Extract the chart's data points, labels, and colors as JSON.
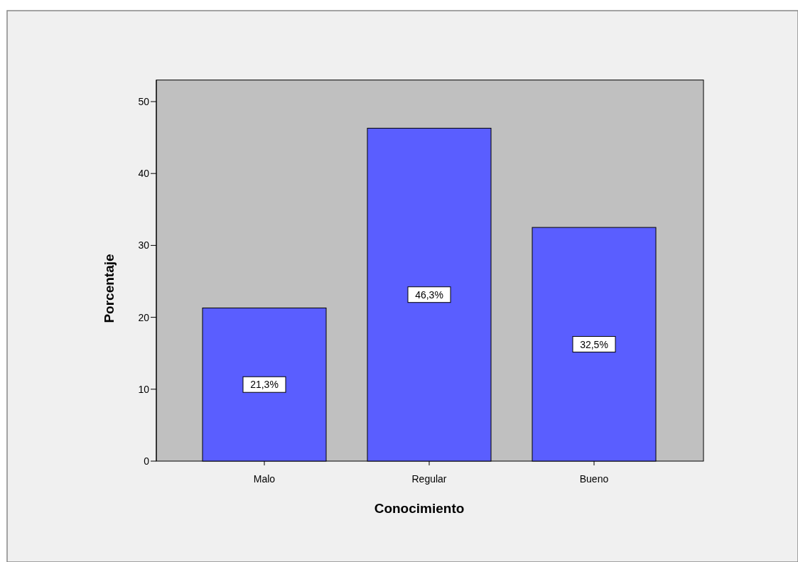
{
  "chart_data": {
    "type": "bar",
    "xlabel": "Conocimiento",
    "ylabel": "Porcentaje",
    "categories": [
      "Malo",
      "Regular",
      "Bueno"
    ],
    "values": [
      21.3,
      46.3,
      32.5
    ],
    "value_labels": [
      "21,3%",
      "46,3%",
      "32,5%"
    ],
    "color": "#5a5eff",
    "ylim": [
      0,
      53
    ],
    "yticks": [
      0,
      10,
      20,
      30,
      40,
      50
    ],
    "grid": false
  }
}
